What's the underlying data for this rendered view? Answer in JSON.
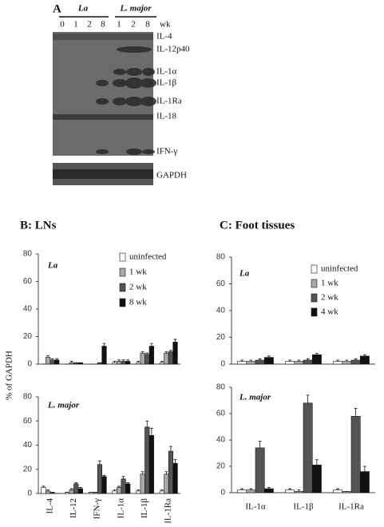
{
  "panel_a": {
    "label": "A",
    "groups": [
      "La",
      "L. major"
    ],
    "lanes": [
      0,
      1,
      2,
      8,
      1,
      2,
      8
    ],
    "unit": "wk",
    "bands": [
      "IL-4",
      "IL-12p40",
      "IL-1α",
      "IL-1β",
      "IL-1Ra",
      "IL-18",
      "IFN-γ"
    ],
    "control": "GAPDH"
  },
  "chart_data": [
    {
      "type": "bar",
      "title": "B:  LNs",
      "annotation": "La",
      "ylim": [
        0,
        80
      ],
      "yticks": [
        0,
        20,
        40,
        60,
        80
      ],
      "series": [
        {
          "name": "uninfected",
          "color": "#ffffff",
          "values": [
            0,
            0,
            0,
            1,
            1,
            1
          ],
          "errors": [
            0,
            0,
            0,
            1,
            1,
            1
          ]
        },
        {
          "name": "1 wk",
          "color": "#a8a8a8",
          "values": [
            5,
            1,
            0,
            2,
            8,
            8
          ],
          "errors": [
            1,
            1,
            0,
            1,
            1,
            1
          ]
        },
        {
          "name": "2 wk",
          "color": "#555555",
          "values": [
            3,
            1,
            1,
            2,
            7,
            9
          ],
          "errors": [
            1,
            0,
            0,
            1,
            1,
            1
          ]
        },
        {
          "name": "8 wk",
          "color": "#111111",
          "values": [
            3,
            1,
            13,
            2,
            13,
            16
          ],
          "errors": [
            1,
            0,
            2,
            1,
            2,
            2
          ]
        }
      ]
    },
    {
      "type": "bar",
      "annotation": "L. major",
      "ylabel": "% of GAPDH",
      "ylim": [
        0,
        80
      ],
      "yticks": [
        0,
        20,
        40,
        60,
        80
      ],
      "categories": [
        "IL-4",
        "IL-12",
        "IFN-γ",
        "IL-1α",
        "IL-1β",
        "IL-1Ra"
      ],
      "series": [
        {
          "color": "#ffffff",
          "values": [
            5,
            1,
            1,
            2,
            2,
            2
          ],
          "errors": [
            1,
            0,
            0,
            1,
            1,
            1
          ]
        },
        {
          "color": "#a8a8a8",
          "values": [
            2,
            3,
            1,
            5,
            16,
            16
          ],
          "errors": [
            1,
            1,
            0,
            1,
            2,
            2
          ]
        },
        {
          "color": "#555555",
          "values": [
            1,
            8,
            24,
            12,
            55,
            35
          ],
          "errors": [
            0,
            1,
            3,
            2,
            5,
            4
          ]
        },
        {
          "color": "#111111",
          "values": [
            0,
            4,
            14,
            8,
            48,
            25
          ],
          "errors": [
            0,
            1,
            1,
            1,
            6,
            3
          ]
        }
      ]
    },
    {
      "type": "bar",
      "title": "C:  Foot tissues",
      "annotation": "La",
      "ylim": [
        0,
        80
      ],
      "yticks": [
        0,
        20,
        40,
        60,
        80
      ],
      "series": [
        {
          "name": "uninfected",
          "color": "#ffffff",
          "values": [
            2,
            2,
            2
          ],
          "errors": [
            1,
            1,
            1
          ]
        },
        {
          "name": "1 wk",
          "color": "#a8a8a8",
          "values": [
            2,
            2,
            2
          ],
          "errors": [
            1,
            1,
            1
          ]
        },
        {
          "name": "2 wk",
          "color": "#555555",
          "values": [
            3,
            3,
            3
          ],
          "errors": [
            1,
            1,
            1
          ]
        },
        {
          "name": "4 wk",
          "color": "#111111",
          "values": [
            5,
            7,
            6
          ],
          "errors": [
            1,
            1,
            1
          ]
        }
      ]
    },
    {
      "type": "bar",
      "annotation": "L. major",
      "ylim": [
        0,
        80
      ],
      "yticks": [
        0,
        20,
        40,
        60,
        80
      ],
      "categories": [
        "IL-1α",
        "IL-1β",
        "IL-1Ra"
      ],
      "series": [
        {
          "color": "#ffffff",
          "values": [
            2,
            2,
            2
          ],
          "errors": [
            1,
            1,
            1
          ]
        },
        {
          "color": "#a8a8a8",
          "values": [
            2,
            1,
            1
          ],
          "errors": [
            1,
            1,
            0
          ]
        },
        {
          "color": "#555555",
          "values": [
            34,
            68,
            58
          ],
          "errors": [
            5,
            6,
            6
          ]
        },
        {
          "color": "#111111",
          "values": [
            3,
            21,
            16
          ],
          "errors": [
            1,
            4,
            4
          ]
        }
      ]
    }
  ]
}
